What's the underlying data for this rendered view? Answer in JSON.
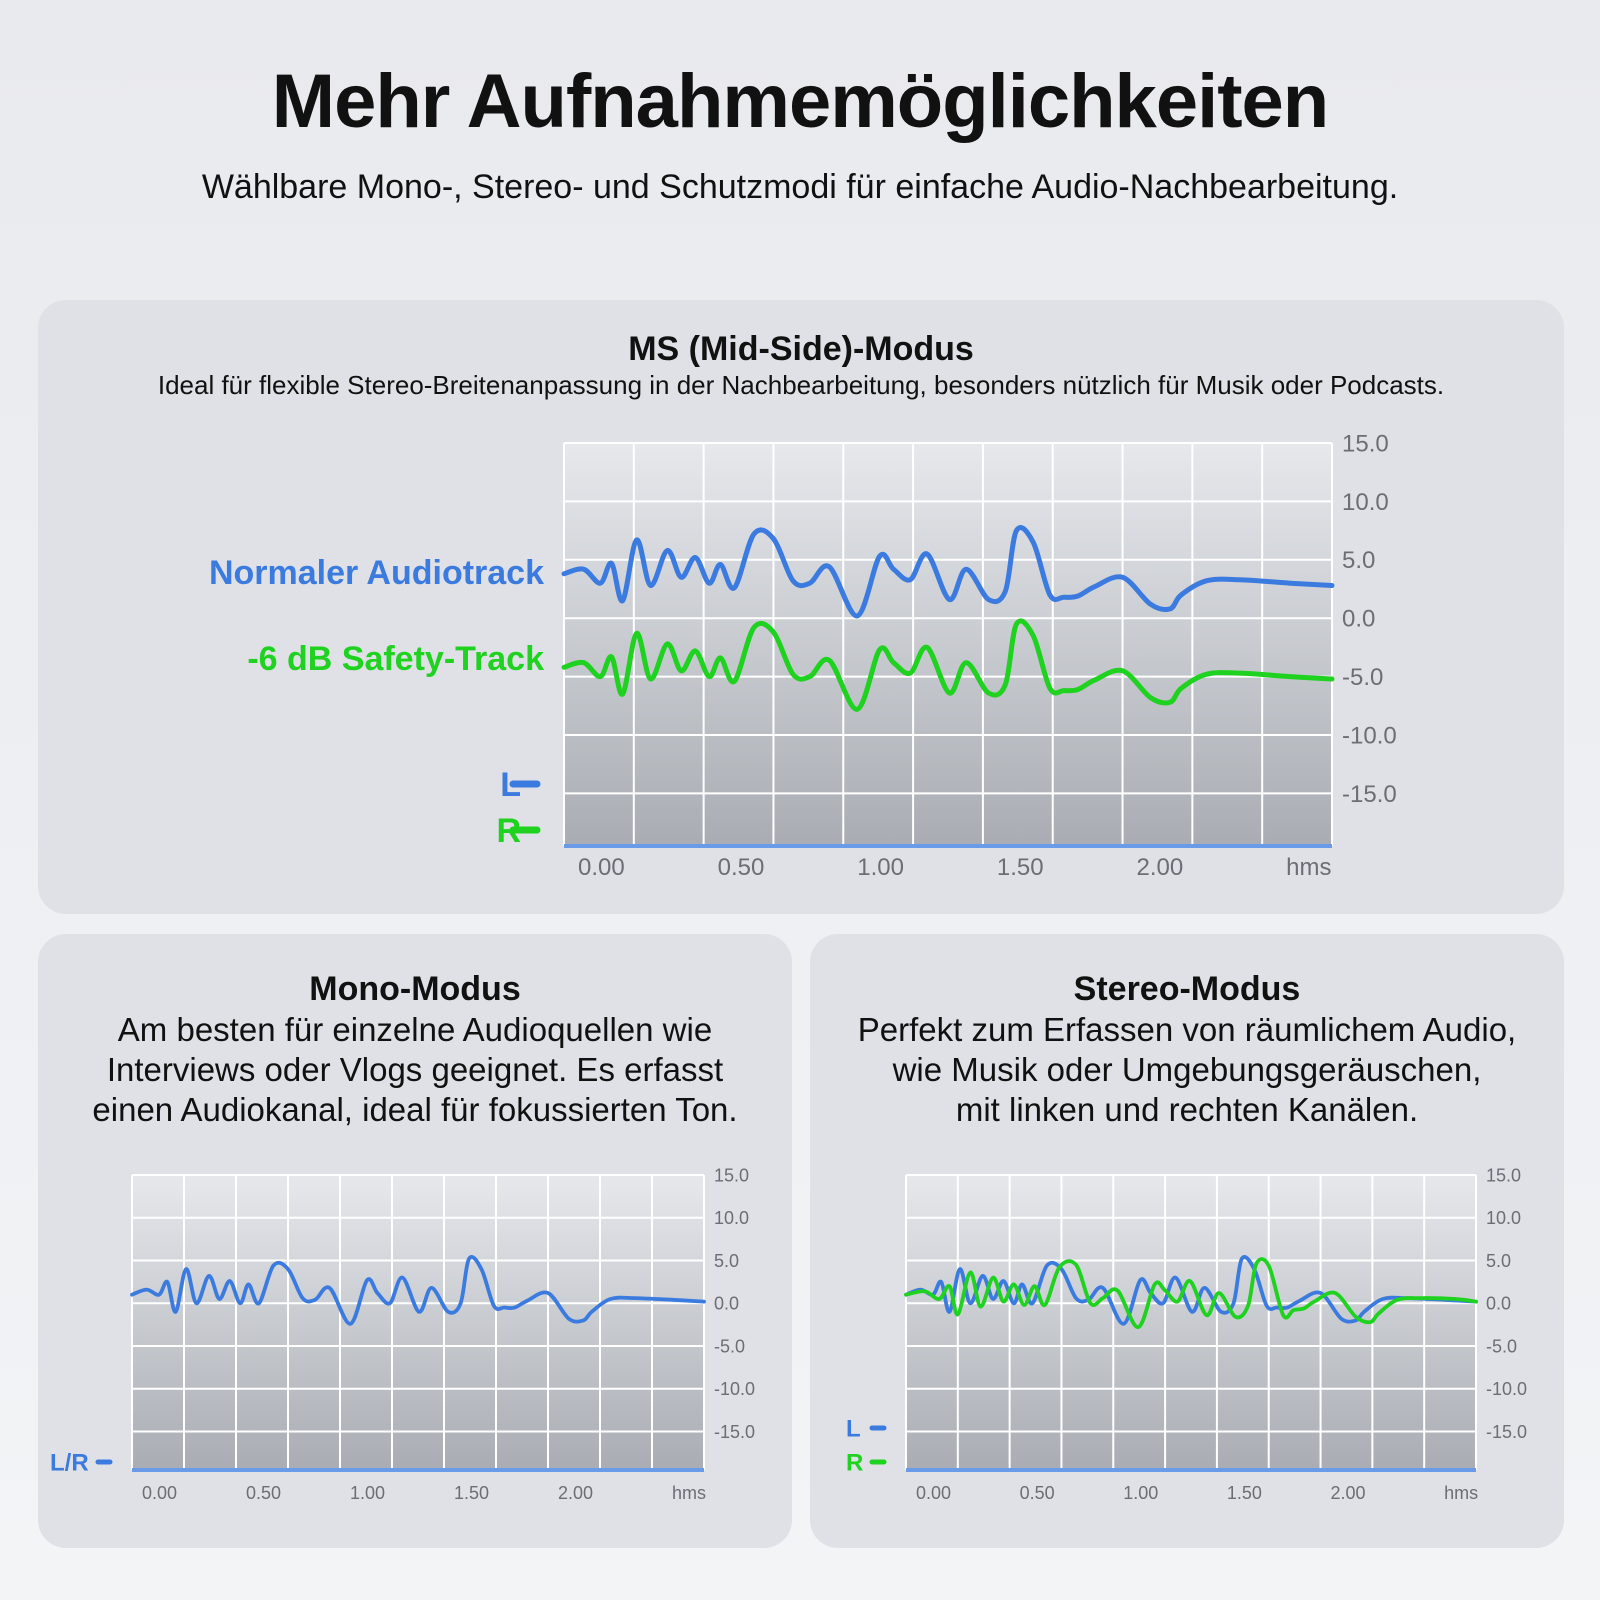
{
  "header": {
    "title": "Mehr Aufnahmemöglichkeiten",
    "subtitle": "Wählbare Mono-, Stereo- und Schutzmodi für einfache Audio-Nachbearbeitung."
  },
  "colors": {
    "blue": "#3b7be0",
    "green": "#1fd21f",
    "axis_text": "#6b6e75"
  },
  "panels": {
    "ms": {
      "title": "MS (Mid-Side)-Modus",
      "description": "Ideal für flexible Stereo-Breitenanpassung in der Nachbearbeitung, besonders nützlich für Musik oder Podcasts.",
      "normal_label": "Normaler Audiotrack",
      "safety_label": "-6 dB Safety-Track"
    },
    "mono": {
      "title": "Mono-Modus",
      "description_lines": [
        "Am besten für einzelne Audioquellen wie",
        "Interviews oder Vlogs geeignet. Es erfasst",
        "einen Audiokanal, ideal für fokussierten Ton."
      ]
    },
    "stereo": {
      "title": "Stereo-Modus",
      "description_lines": [
        "Perfekt zum Erfassen von räumlichem Audio,",
        "wie Musik oder Umgebungsgeräuschen,",
        "mit linken und rechten Kanälen."
      ]
    }
  },
  "chart_data": [
    {
      "type": "line",
      "id": "ms",
      "x_tick_labels": [
        "0.00",
        "0.50",
        "1.00",
        "1.50",
        "2.00",
        "hms"
      ],
      "y_tick_labels": [
        "15.0",
        "10.0",
        "5.0",
        "0.0",
        "-5.0",
        "-10.0",
        "-15.0"
      ],
      "ylim": [
        -19.5,
        15.0
      ],
      "xlim": [
        0,
        2.75
      ],
      "grid": true,
      "legend": [
        {
          "label": "L",
          "color": "#3b7be0"
        },
        {
          "label": "R",
          "color": "#1fd21f"
        }
      ],
      "series": [
        {
          "name": "Normaler Audiotrack",
          "color": "#3b7be0",
          "x": [
            0,
            0.07,
            0.13,
            0.17,
            0.21,
            0.26,
            0.31,
            0.37,
            0.42,
            0.47,
            0.52,
            0.56,
            0.61,
            0.68,
            0.75,
            0.82,
            0.88,
            0.95,
            1.05,
            1.13,
            1.18,
            1.24,
            1.3,
            1.38,
            1.44,
            1.52,
            1.58,
            1.62,
            1.68,
            1.74,
            1.79,
            1.84,
            1.9,
            2.0,
            2.1,
            2.17,
            2.21,
            2.3,
            2.42,
            2.6,
            2.75
          ],
          "y": [
            3.8,
            4.2,
            3.0,
            4.7,
            1.5,
            6.7,
            2.8,
            5.8,
            3.5,
            5.2,
            3.0,
            4.6,
            2.6,
            7.2,
            6.8,
            3.2,
            3.0,
            4.4,
            0.2,
            5.3,
            4.2,
            3.3,
            5.5,
            1.6,
            4.2,
            1.6,
            2.3,
            7.5,
            6.5,
            2.0,
            1.8,
            1.9,
            2.7,
            3.5,
            1.2,
            0.8,
            2.0,
            3.2,
            3.3,
            3.0,
            2.8
          ]
        },
        {
          "name": "-6 dB Safety-Track",
          "color": "#1fd21f",
          "x": [
            0,
            0.07,
            0.13,
            0.17,
            0.21,
            0.26,
            0.31,
            0.37,
            0.42,
            0.47,
            0.52,
            0.56,
            0.61,
            0.68,
            0.75,
            0.82,
            0.88,
            0.95,
            1.05,
            1.13,
            1.18,
            1.24,
            1.3,
            1.38,
            1.44,
            1.52,
            1.58,
            1.62,
            1.68,
            1.74,
            1.79,
            1.84,
            1.9,
            2.0,
            2.1,
            2.17,
            2.21,
            2.3,
            2.42,
            2.6,
            2.75
          ],
          "y": [
            -4.2,
            -3.8,
            -5.0,
            -3.3,
            -6.5,
            -1.3,
            -5.2,
            -2.2,
            -4.5,
            -2.8,
            -5.0,
            -3.4,
            -5.4,
            -0.8,
            -1.2,
            -4.8,
            -5.0,
            -3.6,
            -7.8,
            -2.7,
            -3.8,
            -4.7,
            -2.5,
            -6.4,
            -3.8,
            -6.4,
            -5.7,
            -0.5,
            -1.5,
            -6.0,
            -6.2,
            -6.1,
            -5.3,
            -4.5,
            -6.8,
            -7.2,
            -6.0,
            -4.8,
            -4.7,
            -5.0,
            -5.2
          ]
        }
      ]
    },
    {
      "type": "line",
      "id": "mono",
      "x_tick_labels": [
        "0.00",
        "0.50",
        "1.00",
        "1.50",
        "2.00",
        "hms"
      ],
      "y_tick_labels": [
        "15.0",
        "10.0",
        "5.0",
        "0.0",
        "-5.0",
        "-10.0",
        "-15.0"
      ],
      "ylim": [
        -19.5,
        15.0
      ],
      "xlim": [
        0,
        2.75
      ],
      "grid": true,
      "legend": [
        {
          "label": "L/R",
          "color": "#3b7be0"
        }
      ],
      "series": [
        {
          "name": "L/R",
          "color": "#3b7be0",
          "x": [
            0,
            0.07,
            0.13,
            0.17,
            0.21,
            0.26,
            0.31,
            0.37,
            0.42,
            0.47,
            0.52,
            0.56,
            0.61,
            0.68,
            0.75,
            0.82,
            0.88,
            0.95,
            1.05,
            1.13,
            1.18,
            1.24,
            1.3,
            1.38,
            1.44,
            1.52,
            1.58,
            1.62,
            1.68,
            1.74,
            1.79,
            1.84,
            1.9,
            2.0,
            2.1,
            2.17,
            2.21,
            2.3,
            2.42,
            2.6,
            2.75
          ],
          "y": [
            1.0,
            1.6,
            1.0,
            2.5,
            -1.0,
            4.0,
            0.0,
            3.2,
            0.5,
            2.6,
            0.0,
            2.2,
            0.0,
            4.4,
            4.0,
            0.6,
            0.4,
            1.8,
            -2.4,
            2.7,
            1.2,
            0.0,
            3.0,
            -1.0,
            1.8,
            -1.0,
            0.0,
            5.2,
            4.0,
            -0.3,
            -0.5,
            -0.5,
            0.3,
            1.2,
            -1.8,
            -2.0,
            -1.0,
            0.5,
            0.6,
            0.4,
            0.2
          ]
        }
      ]
    },
    {
      "type": "line",
      "id": "stereo",
      "x_tick_labels": [
        "0.00",
        "0.50",
        "1.00",
        "1.50",
        "2.00",
        "hms"
      ],
      "y_tick_labels": [
        "15.0",
        "10.0",
        "5.0",
        "0.0",
        "-5.0",
        "-10.0",
        "-15.0"
      ],
      "ylim": [
        -19.5,
        15.0
      ],
      "xlim": [
        0,
        2.75
      ],
      "grid": true,
      "legend": [
        {
          "label": "L",
          "color": "#3b7be0"
        },
        {
          "label": "R",
          "color": "#1fd21f"
        }
      ],
      "series": [
        {
          "name": "L",
          "color": "#3b7be0",
          "x": [
            0,
            0.07,
            0.13,
            0.17,
            0.21,
            0.26,
            0.31,
            0.37,
            0.42,
            0.47,
            0.52,
            0.56,
            0.61,
            0.68,
            0.75,
            0.82,
            0.88,
            0.95,
            1.05,
            1.13,
            1.18,
            1.24,
            1.3,
            1.38,
            1.44,
            1.52,
            1.58,
            1.62,
            1.68,
            1.74,
            1.79,
            1.84,
            1.9,
            2.0,
            2.1,
            2.17,
            2.21,
            2.3,
            2.42,
            2.6,
            2.75
          ],
          "y": [
            1.0,
            1.6,
            1.0,
            2.5,
            -1.0,
            4.0,
            0.0,
            3.2,
            0.5,
            2.6,
            0.0,
            2.2,
            0.0,
            4.4,
            4.0,
            0.6,
            0.4,
            1.8,
            -2.4,
            2.7,
            1.2,
            0.0,
            3.0,
            -1.0,
            1.8,
            -1.0,
            0.0,
            5.2,
            4.0,
            -0.3,
            -0.5,
            -0.5,
            0.3,
            1.2,
            -1.8,
            -2.0,
            -1.0,
            0.5,
            0.6,
            0.4,
            0.2
          ]
        },
        {
          "name": "R",
          "color": "#1fd21f",
          "x": [
            0,
            0.09,
            0.16,
            0.21,
            0.25,
            0.31,
            0.36,
            0.42,
            0.47,
            0.52,
            0.57,
            0.62,
            0.67,
            0.74,
            0.82,
            0.89,
            0.95,
            1.02,
            1.12,
            1.2,
            1.25,
            1.31,
            1.37,
            1.45,
            1.51,
            1.59,
            1.65,
            1.69,
            1.75,
            1.82,
            1.87,
            1.92,
            1.97,
            2.07,
            2.17,
            2.24,
            2.28,
            2.37,
            2.49,
            2.65,
            2.75
          ],
          "y": [
            1.0,
            1.4,
            0.5,
            2.0,
            -1.3,
            3.6,
            -0.4,
            3.0,
            0.2,
            2.2,
            -0.2,
            2.0,
            -0.2,
            4.2,
            4.5,
            0.0,
            0.6,
            1.5,
            -2.8,
            2.2,
            1.5,
            0.2,
            2.6,
            -1.4,
            1.2,
            -1.6,
            -0.3,
            4.6,
            4.4,
            -1.4,
            -0.8,
            -0.6,
            0.2,
            1.2,
            -1.6,
            -2.2,
            -1.2,
            0.4,
            0.6,
            0.5,
            0.2
          ]
        }
      ]
    }
  ]
}
